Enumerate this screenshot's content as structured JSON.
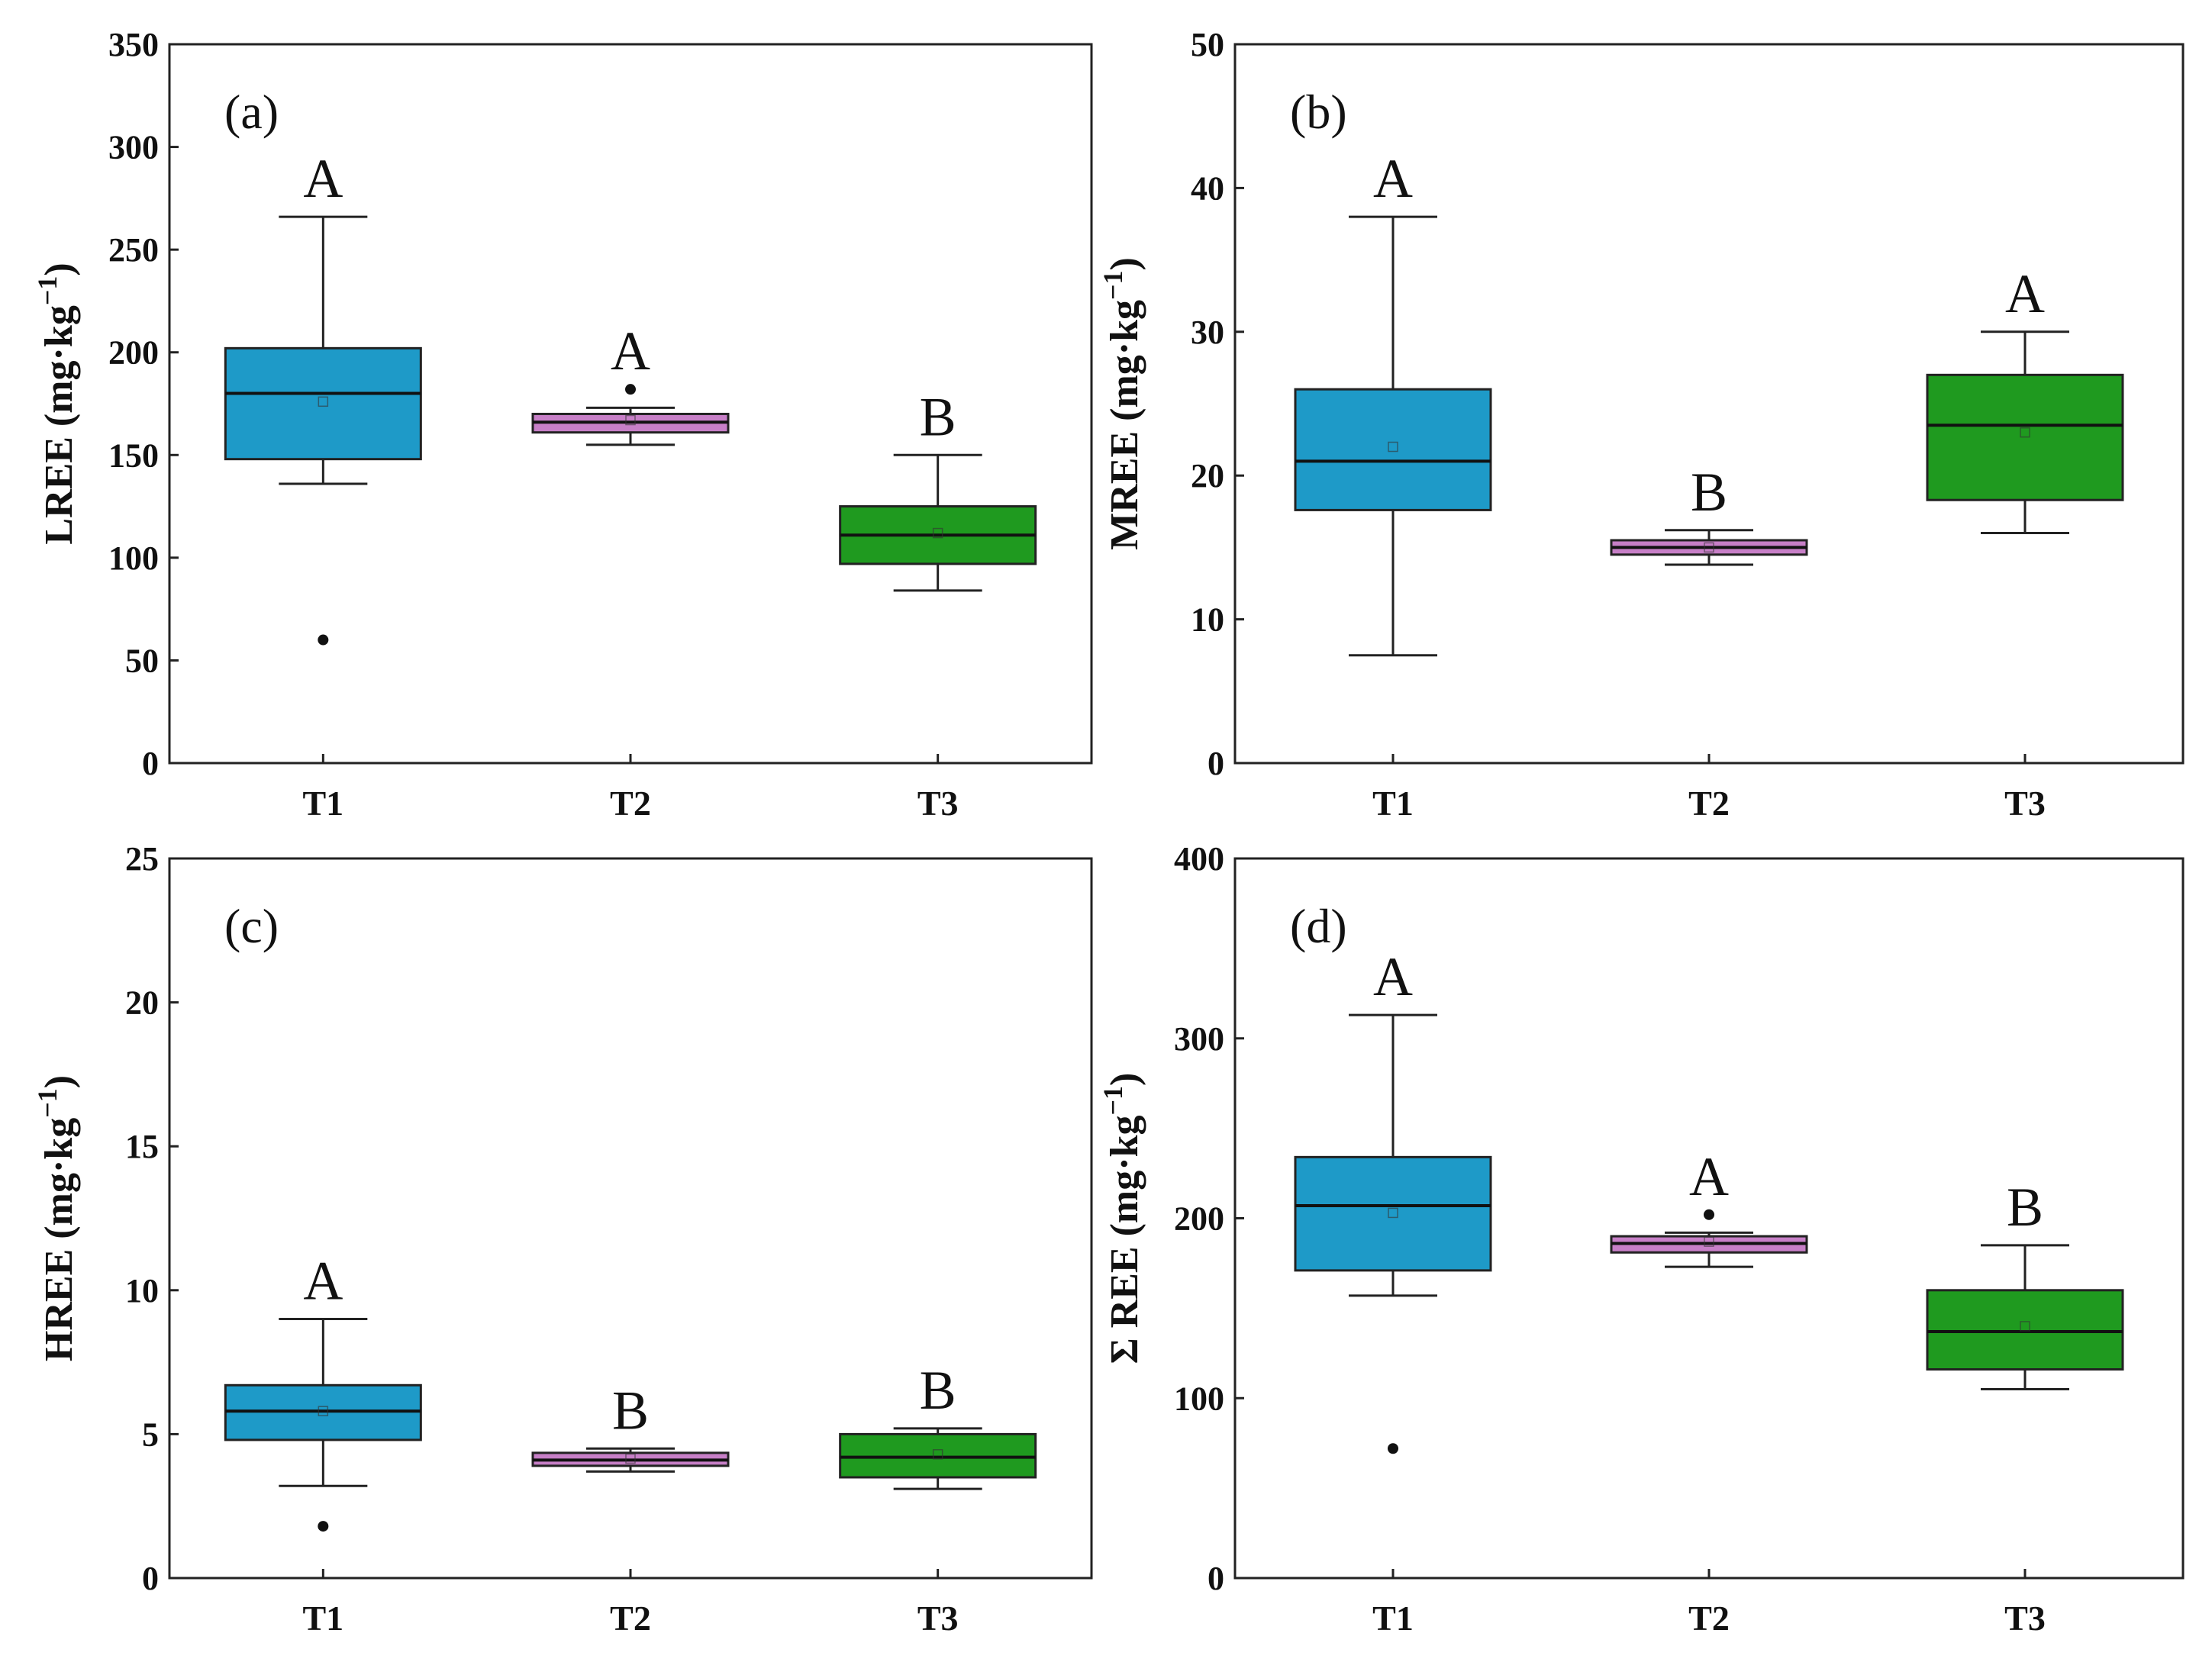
{
  "colors": {
    "T1": "#1e9ac8",
    "T2": "#c77fc7",
    "T3": "#1f9a1f"
  },
  "chart_data": [
    {
      "type": "box",
      "panel_label": "(a)",
      "ylabel_main": "LREE",
      "ylabel_unit": "(mg·kg",
      "ylabel_sup": "−1",
      "ylabel_close": ")",
      "ylim": [
        0,
        350
      ],
      "yticks": [
        "0",
        "50",
        "100",
        "150",
        "200",
        "250",
        "300",
        "350"
      ],
      "ytick_values": [
        0,
        50,
        100,
        150,
        200,
        250,
        300,
        350
      ],
      "categories": [
        "T1",
        "T2",
        "T3"
      ],
      "boxes": [
        {
          "name": "T1",
          "whisker_low": 136,
          "q1": 148,
          "median": 180,
          "q3": 202,
          "whisker_high": 266,
          "mean": 176,
          "outliers": [
            60
          ],
          "letter": "A"
        },
        {
          "name": "T2",
          "whisker_low": 155,
          "q1": 161,
          "median": 166,
          "q3": 170,
          "whisker_high": 173,
          "mean": 167,
          "outliers": [
            182
          ],
          "letter": "A"
        },
        {
          "name": "T3",
          "whisker_low": 84,
          "q1": 97,
          "median": 111,
          "q3": 125,
          "whisker_high": 150,
          "mean": 112,
          "outliers": [],
          "letter": "B"
        }
      ]
    },
    {
      "type": "box",
      "panel_label": "(b)",
      "ylabel_main": "MREE",
      "ylabel_unit": "(mg·kg",
      "ylabel_sup": "−1",
      "ylabel_close": ")",
      "ylim": [
        0,
        50
      ],
      "yticks": [
        "0",
        "10",
        "20",
        "30",
        "40",
        "50"
      ],
      "ytick_values": [
        0,
        10,
        20,
        30,
        40,
        50
      ],
      "categories": [
        "T1",
        "T2",
        "T3"
      ],
      "boxes": [
        {
          "name": "T1",
          "whisker_low": 7.5,
          "q1": 17.6,
          "median": 21,
          "q3": 26,
          "whisker_high": 38,
          "mean": 22,
          "outliers": [],
          "letter": "A"
        },
        {
          "name": "T2",
          "whisker_low": 13.8,
          "q1": 14.5,
          "median": 15,
          "q3": 15.5,
          "whisker_high": 16.2,
          "mean": 15,
          "outliers": [],
          "letter": "B"
        },
        {
          "name": "T3",
          "whisker_low": 16,
          "q1": 18.3,
          "median": 23.5,
          "q3": 27,
          "whisker_high": 30,
          "mean": 23,
          "outliers": [],
          "letter": "A"
        }
      ]
    },
    {
      "type": "box",
      "panel_label": "(c)",
      "ylabel_main": "HREE",
      "ylabel_unit": "(mg·kg",
      "ylabel_sup": "−1",
      "ylabel_close": ")",
      "ylim": [
        0,
        25
      ],
      "yticks": [
        "0",
        "5",
        "10",
        "15",
        "20",
        "25"
      ],
      "ytick_values": [
        0,
        5,
        10,
        15,
        20,
        25
      ],
      "categories": [
        "T1",
        "T2",
        "T3"
      ],
      "boxes": [
        {
          "name": "T1",
          "whisker_low": 3.2,
          "q1": 4.8,
          "median": 5.8,
          "q3": 6.7,
          "whisker_high": 9.0,
          "mean": 5.8,
          "outliers": [
            1.8
          ],
          "letter": "A"
        },
        {
          "name": "T2",
          "whisker_low": 3.7,
          "q1": 3.9,
          "median": 4.1,
          "q3": 4.35,
          "whisker_high": 4.5,
          "mean": 4.15,
          "outliers": [],
          "letter": "B"
        },
        {
          "name": "T3",
          "whisker_low": 3.1,
          "q1": 3.5,
          "median": 4.2,
          "q3": 5.0,
          "whisker_high": 5.2,
          "mean": 4.3,
          "outliers": [],
          "letter": "B"
        }
      ]
    },
    {
      "type": "box",
      "panel_label": "(d)",
      "ylabel_main": "Σ REE",
      "ylabel_unit": "(mg·kg",
      "ylabel_sup": "−1",
      "ylabel_close": ")",
      "ylim": [
        0,
        400
      ],
      "yticks": [
        "0",
        "100",
        "200",
        "300",
        "400"
      ],
      "ytick_values": [
        0,
        100,
        200,
        300,
        400
      ],
      "categories": [
        "T1",
        "T2",
        "T3"
      ],
      "boxes": [
        {
          "name": "T1",
          "whisker_low": 157,
          "q1": 171,
          "median": 207,
          "q3": 234,
          "whisker_high": 313,
          "mean": 203,
          "outliers": [
            72
          ],
          "letter": "A"
        },
        {
          "name": "T2",
          "whisker_low": 173,
          "q1": 181,
          "median": 186,
          "q3": 190,
          "whisker_high": 192,
          "mean": 187,
          "outliers": [
            202
          ],
          "letter": "A"
        },
        {
          "name": "T3",
          "whisker_low": 105,
          "q1": 116,
          "median": 137,
          "q3": 160,
          "whisker_high": 185,
          "mean": 140,
          "outliers": [],
          "letter": "B"
        }
      ]
    }
  ]
}
